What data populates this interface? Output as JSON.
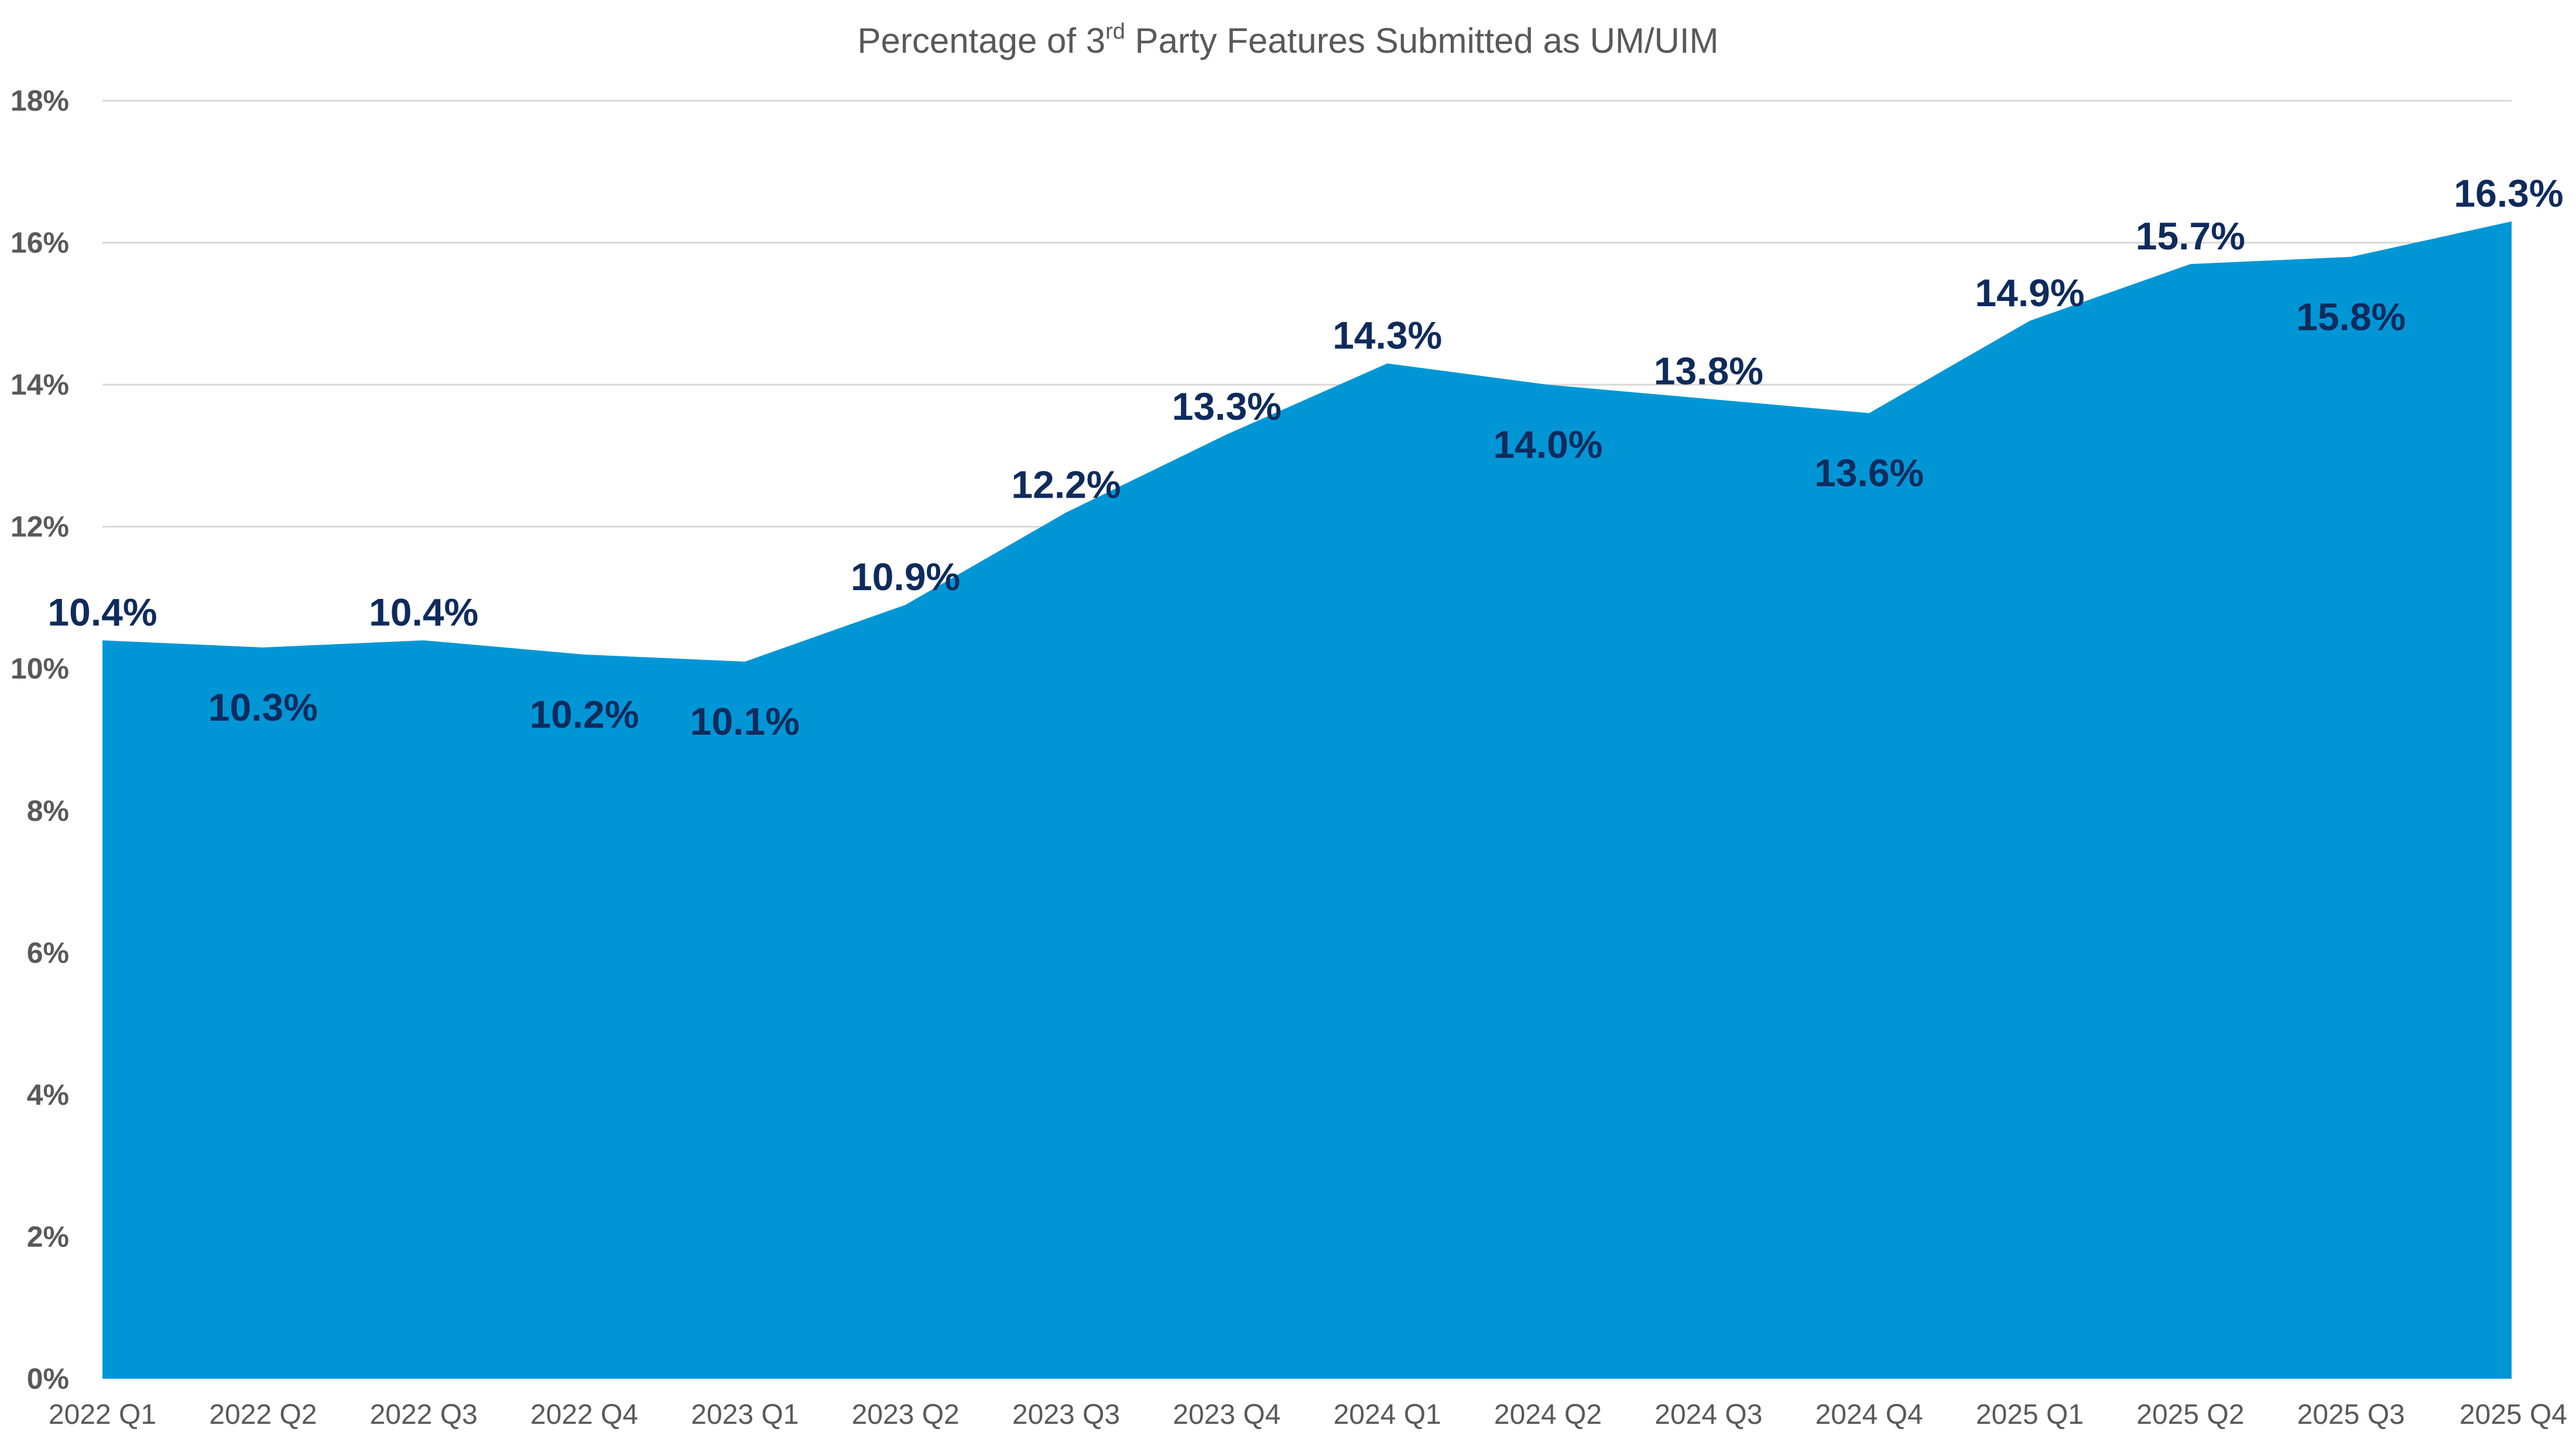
{
  "chart_data": {
    "type": "area",
    "title": "Percentage of 3",
    "title_sup": "rd",
    "title_rest": " Party Features Submitted as UM/UIM",
    "categories": [
      "2022 Q1",
      "2022 Q2",
      "2022 Q3",
      "2022 Q4",
      "2023 Q1",
      "2023 Q2",
      "2023 Q3",
      "2023 Q4",
      "2024 Q1",
      "2024 Q2",
      "2024 Q3",
      "2024 Q4",
      "2025 Q1",
      "2025 Q2",
      "2025 Q3",
      "2025 Q4"
    ],
    "values": [
      10.4,
      10.3,
      10.4,
      10.2,
      10.1,
      10.9,
      12.2,
      13.3,
      14.3,
      14.0,
      13.8,
      13.6,
      14.9,
      15.7,
      15.8,
      16.3
    ],
    "data_labels": [
      "10.4%",
      "10.3%",
      "10.4%",
      "10.2%",
      "10.1%",
      "10.9%",
      "12.2%",
      "13.3%",
      "14.3%",
      "14.0%",
      "13.8%",
      "13.6%",
      "14.9%",
      "15.7%",
      "15.8%",
      "16.3%"
    ],
    "ylim": [
      0,
      18
    ],
    "yticks": [
      "0%",
      "2%",
      "4%",
      "6%",
      "8%",
      "10%",
      "12%",
      "14%",
      "16%",
      "18%"
    ],
    "ytick_values": [
      0,
      2,
      4,
      6,
      8,
      10,
      12,
      14,
      16,
      18
    ],
    "xlabel": "",
    "ylabel": "",
    "grid": true,
    "legend": "none",
    "fill_color": "#0096d6",
    "label_color": "#0e2b5c",
    "axis_text_color": "#595959"
  }
}
